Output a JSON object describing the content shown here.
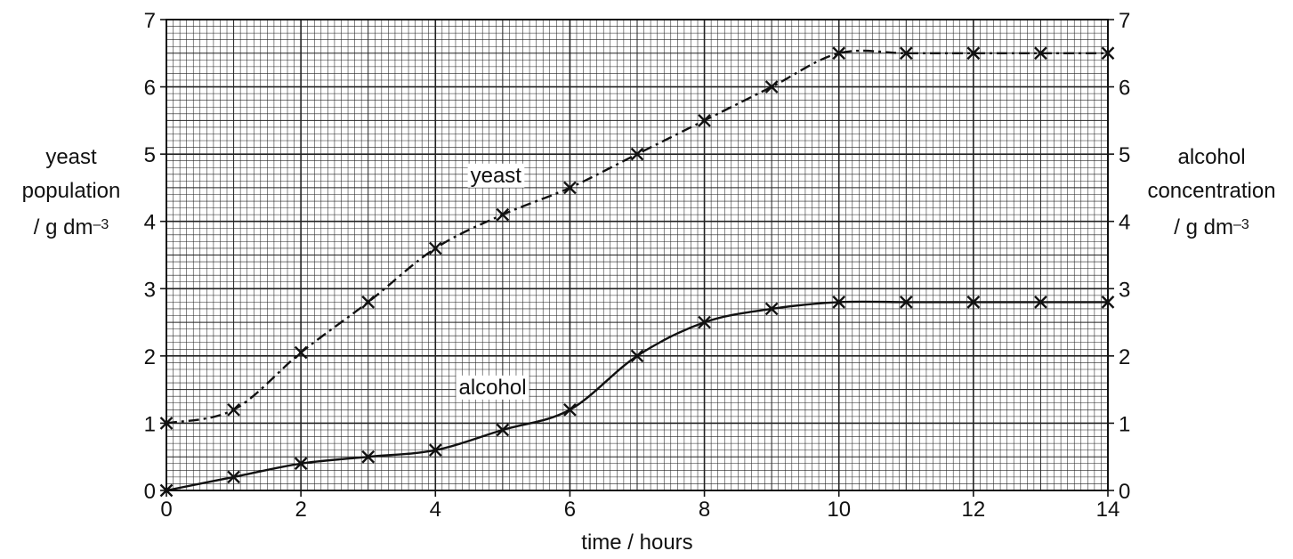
{
  "chart_data": {
    "type": "line",
    "title": "",
    "xlabel": "time / hours",
    "ylabel_left": {
      "line1": "yeast",
      "line2": "population",
      "line3": "/ g dm",
      "exp": "–3"
    },
    "ylabel_right": {
      "line1": "alcohol",
      "line2": "concentration",
      "line3": "/ g dm",
      "exp": "–3"
    },
    "xlim": [
      0,
      14
    ],
    "ylim": [
      0,
      7
    ],
    "x_ticks": [
      "0",
      "2",
      "4",
      "6",
      "8",
      "10",
      "12",
      "14"
    ],
    "y_ticks": [
      "0",
      "1",
      "2",
      "3",
      "4",
      "5",
      "6",
      "7"
    ],
    "grid": "on",
    "series": [
      {
        "name": "yeast",
        "line_style": "dash-dot",
        "x": [
          0,
          1,
          2,
          3,
          4,
          5,
          6,
          7,
          8,
          9,
          10,
          11,
          12,
          13,
          14
        ],
        "values": [
          1.0,
          1.2,
          2.05,
          2.8,
          3.6,
          4.1,
          4.5,
          5.0,
          5.5,
          6.0,
          6.5,
          6.5,
          6.5,
          6.5,
          6.5
        ]
      },
      {
        "name": "alcohol",
        "line_style": "solid",
        "x": [
          0,
          1,
          2,
          3,
          4,
          5,
          6,
          7,
          8,
          9,
          10,
          11,
          12,
          13,
          14
        ],
        "values": [
          0.0,
          0.2,
          0.4,
          0.5,
          0.6,
          0.9,
          1.2,
          2.0,
          2.5,
          2.7,
          2.8,
          2.8,
          2.8,
          2.8,
          2.8
        ]
      }
    ],
    "annotations": [
      {
        "text": "yeast",
        "x": 4.9,
        "y": 4.7
      },
      {
        "text": "alcohol",
        "x": 4.85,
        "y": 1.55
      }
    ],
    "colors": {
      "ink": "#111111",
      "grid": "#222222"
    }
  }
}
